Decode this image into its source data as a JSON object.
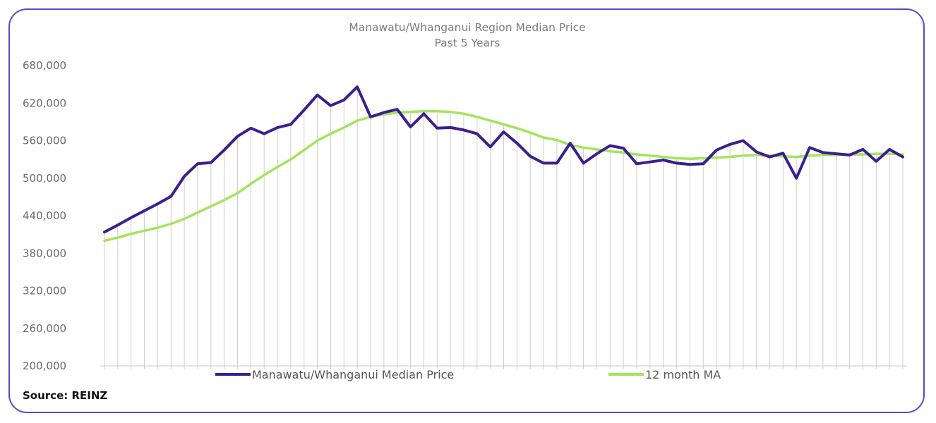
{
  "chart_data": {
    "type": "line",
    "title": "Manawatu/Whanganui Region Median Price",
    "subtitle": "Past 5 Years",
    "source": "Source: REINZ",
    "ylim": [
      200000,
      680000
    ],
    "yticks": [
      200000,
      260000,
      320000,
      380000,
      440000,
      500000,
      560000,
      620000,
      680000
    ],
    "ytick_labels": [
      "200,000",
      "260,000",
      "320,000",
      "380,000",
      "440,000",
      "500,000",
      "560,000",
      "620,000",
      "680,000"
    ],
    "grid": "vertical drop lines",
    "legend_position": "bottom",
    "x": [
      1,
      2,
      3,
      4,
      5,
      6,
      7,
      8,
      9,
      10,
      11,
      12,
      13,
      14,
      15,
      16,
      17,
      18,
      19,
      20,
      21,
      22,
      23,
      24,
      25,
      26,
      27,
      28,
      29,
      30,
      31,
      32,
      33,
      34,
      35,
      36,
      37,
      38,
      39,
      40,
      41,
      42,
      43,
      44,
      45,
      46,
      47,
      48,
      49,
      50,
      51,
      52,
      53,
      54,
      55,
      56,
      57,
      58,
      59,
      60,
      61
    ],
    "series": [
      {
        "name": "Manawatu/Whanganui Median Price",
        "color": "#3b1f8f",
        "values": [
          414000,
          425000,
          437000,
          448000,
          459000,
          471000,
          503000,
          523000,
          525000,
          545000,
          567000,
          580000,
          571000,
          581000,
          586000,
          609000,
          633000,
          616000,
          625000,
          646000,
          598000,
          605000,
          610000,
          582000,
          603000,
          580000,
          581000,
          577000,
          571000,
          550000,
          574000,
          556000,
          535000,
          524000,
          524000,
          556000,
          524000,
          539000,
          552000,
          548000,
          523000,
          526000,
          529000,
          524000,
          522000,
          523000,
          545000,
          554000,
          560000,
          542000,
          534000,
          540000,
          500000,
          549000,
          541000,
          539000,
          537000,
          546000,
          527000,
          546000,
          534000
        ]
      },
      {
        "name": "12 month MA",
        "color": "#a4e45c",
        "values": [
          400000,
          405000,
          411000,
          416000,
          421000,
          427000,
          435000,
          445000,
          455000,
          465000,
          476000,
          491000,
          505000,
          518000,
          530000,
          545000,
          560000,
          571000,
          581000,
          592000,
          598000,
          602000,
          605000,
          606000,
          607000,
          607000,
          606000,
          603000,
          598000,
          592000,
          586000,
          580000,
          573000,
          565000,
          561000,
          553000,
          549000,
          546000,
          543000,
          541000,
          538000,
          536000,
          534000,
          532000,
          531000,
          532000,
          533000,
          534000,
          536000,
          537000,
          536000,
          535000,
          534000,
          536000,
          537000,
          537000,
          538000,
          538000,
          539000,
          539000,
          538000
        ]
      }
    ]
  }
}
